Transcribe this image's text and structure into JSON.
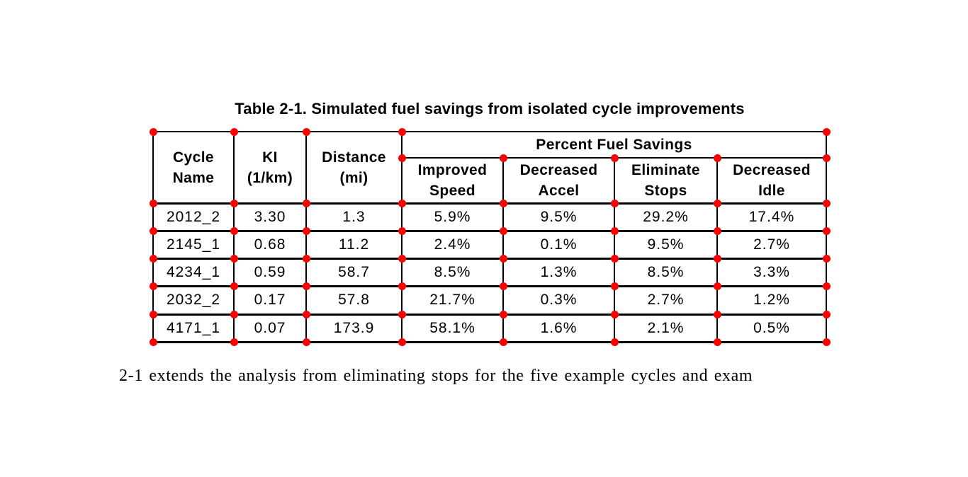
{
  "title": "Table 2-1. Simulated fuel savings from isolated cycle improvements",
  "table": {
    "column_headers": [
      "Cycle\nName",
      "KI\n(1/km)",
      "Distance\n(mi)"
    ],
    "group_header": "Percent Fuel Savings",
    "sub_headers": [
      "Improved\nSpeed",
      "Decreased\nAccel",
      "Eliminate\nStops",
      "Decreased\nIdle"
    ],
    "rows": [
      [
        "2012_2",
        "3.30",
        "1.3",
        "5.9%",
        "9.5%",
        "29.2%",
        "17.4%"
      ],
      [
        "2145_1",
        "0.68",
        "11.2",
        "2.4%",
        "0.1%",
        "9.5%",
        "2.7%"
      ],
      [
        "4234_1",
        "0.59",
        "58.7",
        "8.5%",
        "1.3%",
        "8.5%",
        "3.3%"
      ],
      [
        "2032_2",
        "0.17",
        "57.8",
        "21.7%",
        "0.3%",
        "2.7%",
        "1.2%"
      ],
      [
        "4171_1",
        "0.07",
        "173.9",
        "58.1%",
        "1.6%",
        "2.1%",
        "0.5%"
      ]
    ]
  },
  "caption": {
    "fragment": "e",
    "text": "2-1 extends the analysis from eliminating stops for the five example cycles and exam"
  },
  "annotations": {
    "dot_color": "#ff0000",
    "grid_color": "#000000",
    "dot_pattern_note": "red corner dots at table cell intersections"
  }
}
